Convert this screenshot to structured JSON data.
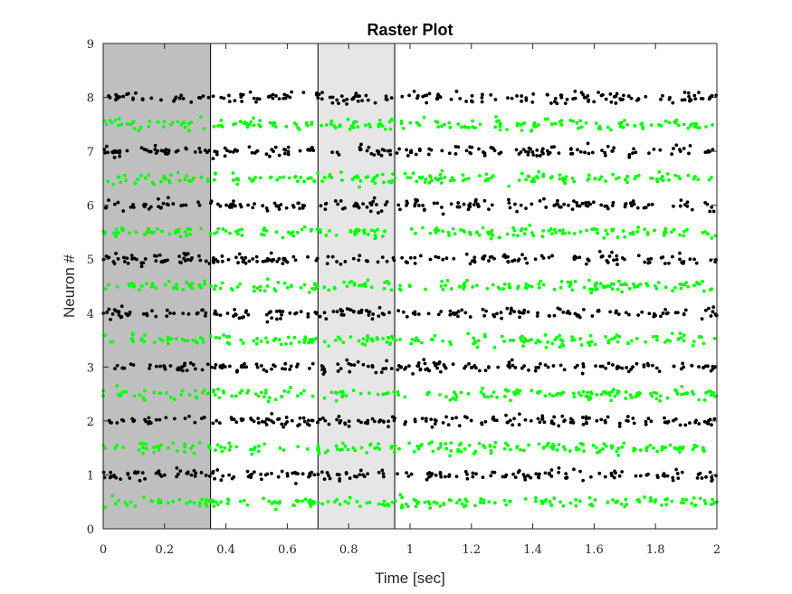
{
  "chart_data": {
    "type": "scatter",
    "title": "Raster Plot",
    "xlabel": "Time [sec]",
    "ylabel": "Neuron #",
    "xlim": [
      0,
      2
    ],
    "ylim": [
      0,
      9
    ],
    "xticks": [
      "0",
      "0.2",
      "0.4",
      "0.6",
      "0.8",
      "1",
      "1.2",
      "1.4",
      "1.6",
      "1.8",
      "2"
    ],
    "yticks": [
      "0",
      "1",
      "2",
      "3",
      "4",
      "5",
      "6",
      "7",
      "8",
      "9"
    ],
    "grid": false,
    "legend": "none",
    "shaded_intervals": [
      {
        "x_start": 0,
        "x_end": 0.35,
        "color": "#bfbfbf"
      },
      {
        "x_start": 0.7,
        "x_end": 0.95,
        "color": "#e6e6e6"
      }
    ],
    "series": [
      {
        "color": "#000000",
        "rows_y": [
          1,
          2,
          3,
          4,
          5,
          6,
          7,
          8
        ],
        "spikes_per_row": 195,
        "jitter_sd": 0.05
      },
      {
        "color": "#00ff00",
        "rows_y": [
          0.5,
          1.5,
          2.5,
          3.5,
          4.5,
          5.5,
          6.5,
          7.5
        ],
        "spikes_per_row": 195,
        "jitter_sd": 0.05
      }
    ]
  }
}
